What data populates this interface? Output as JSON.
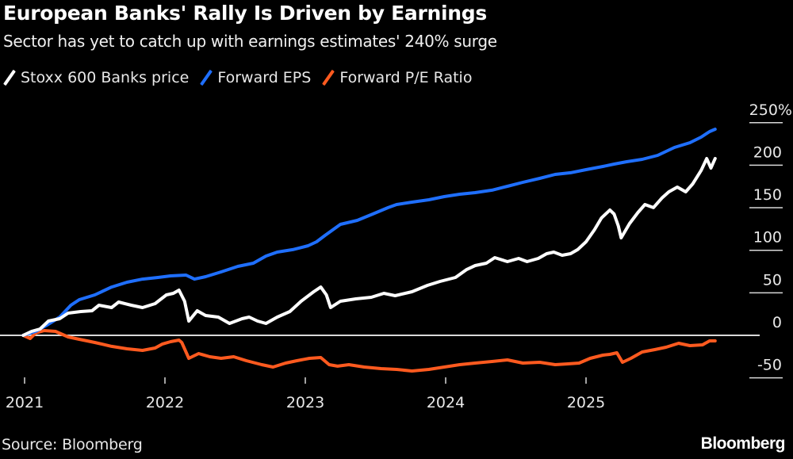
{
  "chart_data": {
    "type": "line",
    "title": "European Banks' Rally Is Driven by Earnings",
    "subtitle": "Sector has yet to catch up with earnings estimates' 240% surge",
    "xlabel": "",
    "ylabel": "",
    "x_ticks": [
      "2021",
      "2022",
      "2023",
      "2024",
      "2025"
    ],
    "x_range": [
      2020.99,
      2025.92
    ],
    "y_ticks": [
      {
        "value": 250,
        "label": "250%"
      },
      {
        "value": 200,
        "label": "200"
      },
      {
        "value": 150,
        "label": "150"
      },
      {
        "value": 100,
        "label": "100"
      },
      {
        "value": 50,
        "label": "50"
      },
      {
        "value": 0,
        "label": "0"
      },
      {
        "value": -50,
        "label": "-50"
      }
    ],
    "ylim": [
      -50,
      250
    ],
    "grid": false,
    "legend_position": "top-left",
    "series": [
      {
        "name": "Stoxx 600 Banks price",
        "color": "#ffffff",
        "points": [
          [
            2020.99,
            0
          ],
          [
            2021.05,
            4.7
          ],
          [
            2021.11,
            7.5
          ],
          [
            2021.17,
            16.8
          ],
          [
            2021.25,
            19.6
          ],
          [
            2021.31,
            26.1
          ],
          [
            2021.4,
            28
          ],
          [
            2021.48,
            28.9
          ],
          [
            2021.53,
            35.4
          ],
          [
            2021.62,
            32.6
          ],
          [
            2021.67,
            39.1
          ],
          [
            2021.76,
            35.4
          ],
          [
            2021.84,
            32.6
          ],
          [
            2021.93,
            37.3
          ],
          [
            2022.01,
            47.5
          ],
          [
            2022.06,
            49.4
          ],
          [
            2022.1,
            53.1
          ],
          [
            2022.14,
            40.1
          ],
          [
            2022.17,
            16.8
          ],
          [
            2022.23,
            28.9
          ],
          [
            2022.29,
            23.3
          ],
          [
            2022.38,
            21.4
          ],
          [
            2022.46,
            14
          ],
          [
            2022.55,
            19.6
          ],
          [
            2022.6,
            21.4
          ],
          [
            2022.66,
            16.8
          ],
          [
            2022.72,
            14
          ],
          [
            2022.8,
            21.4
          ],
          [
            2022.89,
            28
          ],
          [
            2022.97,
            40.1
          ],
          [
            2023.06,
            51.3
          ],
          [
            2023.11,
            56.8
          ],
          [
            2023.15,
            47.5
          ],
          [
            2023.18,
            32.6
          ],
          [
            2023.25,
            40.1
          ],
          [
            2023.36,
            42.9
          ],
          [
            2023.47,
            44.7
          ],
          [
            2023.56,
            49.4
          ],
          [
            2023.64,
            46.6
          ],
          [
            2023.76,
            51.3
          ],
          [
            2023.87,
            58.7
          ],
          [
            2023.96,
            63.4
          ],
          [
            2024.07,
            68
          ],
          [
            2024.15,
            77.4
          ],
          [
            2024.21,
            82
          ],
          [
            2024.29,
            84.8
          ],
          [
            2024.35,
            91.3
          ],
          [
            2024.44,
            86.7
          ],
          [
            2024.52,
            90.4
          ],
          [
            2024.58,
            86.7
          ],
          [
            2024.66,
            90.4
          ],
          [
            2024.72,
            96
          ],
          [
            2024.77,
            97.9
          ],
          [
            2024.83,
            94.1
          ],
          [
            2024.89,
            96
          ],
          [
            2024.94,
            100.7
          ],
          [
            2025.0,
            110
          ],
          [
            2025.06,
            124
          ],
          [
            2025.11,
            138
          ],
          [
            2025.17,
            147.3
          ],
          [
            2025.2,
            142.6
          ],
          [
            2025.23,
            128.6
          ],
          [
            2025.25,
            114.6
          ],
          [
            2025.31,
            131.4
          ],
          [
            2025.37,
            144.5
          ],
          [
            2025.42,
            153.8
          ],
          [
            2025.48,
            150.1
          ],
          [
            2025.54,
            161.3
          ],
          [
            2025.59,
            168.7
          ],
          [
            2025.65,
            174.3
          ],
          [
            2025.71,
            168.7
          ],
          [
            2025.76,
            178
          ],
          [
            2025.82,
            193.8
          ],
          [
            2025.86,
            207.8
          ],
          [
            2025.89,
            196.6
          ],
          [
            2025.92,
            207.8
          ]
        ]
      },
      {
        "name": "Forward EPS",
        "color": "#1f6fff",
        "points": [
          [
            2020.99,
            0
          ],
          [
            2021.08,
            4.7
          ],
          [
            2021.16,
            12.1
          ],
          [
            2021.25,
            21.4
          ],
          [
            2021.33,
            35.4
          ],
          [
            2021.39,
            41.9
          ],
          [
            2021.5,
            47.5
          ],
          [
            2021.62,
            56.8
          ],
          [
            2021.73,
            62.4
          ],
          [
            2021.84,
            66.1
          ],
          [
            2021.95,
            68
          ],
          [
            2022.04,
            69.9
          ],
          [
            2022.15,
            70.8
          ],
          [
            2022.21,
            66.1
          ],
          [
            2022.29,
            69
          ],
          [
            2022.4,
            74.6
          ],
          [
            2022.52,
            81.1
          ],
          [
            2022.63,
            84.8
          ],
          [
            2022.72,
            93.2
          ],
          [
            2022.8,
            97.9
          ],
          [
            2022.91,
            100.7
          ],
          [
            2023.02,
            105.3
          ],
          [
            2023.08,
            110
          ],
          [
            2023.14,
            117.4
          ],
          [
            2023.25,
            130.5
          ],
          [
            2023.37,
            135.1
          ],
          [
            2023.48,
            142.6
          ],
          [
            2023.59,
            150.1
          ],
          [
            2023.65,
            153.8
          ],
          [
            2023.76,
            156.6
          ],
          [
            2023.88,
            159.4
          ],
          [
            2023.99,
            163.1
          ],
          [
            2024.1,
            165.9
          ],
          [
            2024.21,
            167.8
          ],
          [
            2024.33,
            170.6
          ],
          [
            2024.44,
            175.2
          ],
          [
            2024.55,
            179.9
          ],
          [
            2024.67,
            184.5
          ],
          [
            2024.78,
            189.2
          ],
          [
            2024.89,
            191.1
          ],
          [
            2025.0,
            194.8
          ],
          [
            2025.12,
            198.5
          ],
          [
            2025.2,
            201.3
          ],
          [
            2025.29,
            204.1
          ],
          [
            2025.4,
            206.9
          ],
          [
            2025.51,
            211.6
          ],
          [
            2025.63,
            220.9
          ],
          [
            2025.74,
            226.5
          ],
          [
            2025.82,
            233
          ],
          [
            2025.88,
            239.5
          ],
          [
            2025.92,
            242.3
          ]
        ]
      },
      {
        "name": "Forward P/E Ratio",
        "color": "#ff5a1f",
        "points": [
          [
            2020.99,
            0
          ],
          [
            2021.04,
            -3.7
          ],
          [
            2021.08,
            2.8
          ],
          [
            2021.14,
            5.6
          ],
          [
            2021.22,
            4.7
          ],
          [
            2021.31,
            -1.9
          ],
          [
            2021.39,
            -4.7
          ],
          [
            2021.5,
            -8.4
          ],
          [
            2021.62,
            -13
          ],
          [
            2021.73,
            -15.8
          ],
          [
            2021.84,
            -17.7
          ],
          [
            2021.93,
            -14.9
          ],
          [
            2021.98,
            -10.3
          ],
          [
            2022.04,
            -7.5
          ],
          [
            2022.1,
            -5.6
          ],
          [
            2022.12,
            -8.4
          ],
          [
            2022.17,
            -27
          ],
          [
            2022.24,
            -21.4
          ],
          [
            2022.32,
            -25.2
          ],
          [
            2022.4,
            -27
          ],
          [
            2022.49,
            -25.2
          ],
          [
            2022.58,
            -29.8
          ],
          [
            2022.69,
            -34.5
          ],
          [
            2022.77,
            -37.3
          ],
          [
            2022.86,
            -32.6
          ],
          [
            2022.94,
            -29.8
          ],
          [
            2023.03,
            -27
          ],
          [
            2023.11,
            -26.1
          ],
          [
            2023.17,
            -34.5
          ],
          [
            2023.23,
            -36.3
          ],
          [
            2023.31,
            -34.5
          ],
          [
            2023.42,
            -37.3
          ],
          [
            2023.54,
            -39.1
          ],
          [
            2023.65,
            -40.1
          ],
          [
            2023.76,
            -41.9
          ],
          [
            2023.88,
            -40.1
          ],
          [
            2023.99,
            -37.3
          ],
          [
            2024.1,
            -34.5
          ],
          [
            2024.21,
            -32.6
          ],
          [
            2024.33,
            -30.8
          ],
          [
            2024.44,
            -28.9
          ],
          [
            2024.55,
            -32.6
          ],
          [
            2024.67,
            -31.7
          ],
          [
            2024.78,
            -34.5
          ],
          [
            2024.86,
            -33.6
          ],
          [
            2024.95,
            -32.6
          ],
          [
            2025.03,
            -27
          ],
          [
            2025.12,
            -23.3
          ],
          [
            2025.17,
            -22.4
          ],
          [
            2025.22,
            -20.5
          ],
          [
            2025.26,
            -31.7
          ],
          [
            2025.32,
            -27
          ],
          [
            2025.4,
            -19.6
          ],
          [
            2025.49,
            -16.8
          ],
          [
            2025.57,
            -14
          ],
          [
            2025.66,
            -9.3
          ],
          [
            2025.74,
            -12.1
          ],
          [
            2025.83,
            -11.2
          ],
          [
            2025.88,
            -6.5
          ],
          [
            2025.92,
            -6.5
          ]
        ]
      }
    ]
  },
  "legend": [
    {
      "label": "Stoxx 600 Banks price",
      "color": "#ffffff"
    },
    {
      "label": "Forward EPS",
      "color": "#1f6fff"
    },
    {
      "label": "Forward P/E Ratio",
      "color": "#ff5a1f"
    }
  ],
  "footer": {
    "source": "Source: Bloomberg",
    "brand": "Bloomberg"
  }
}
